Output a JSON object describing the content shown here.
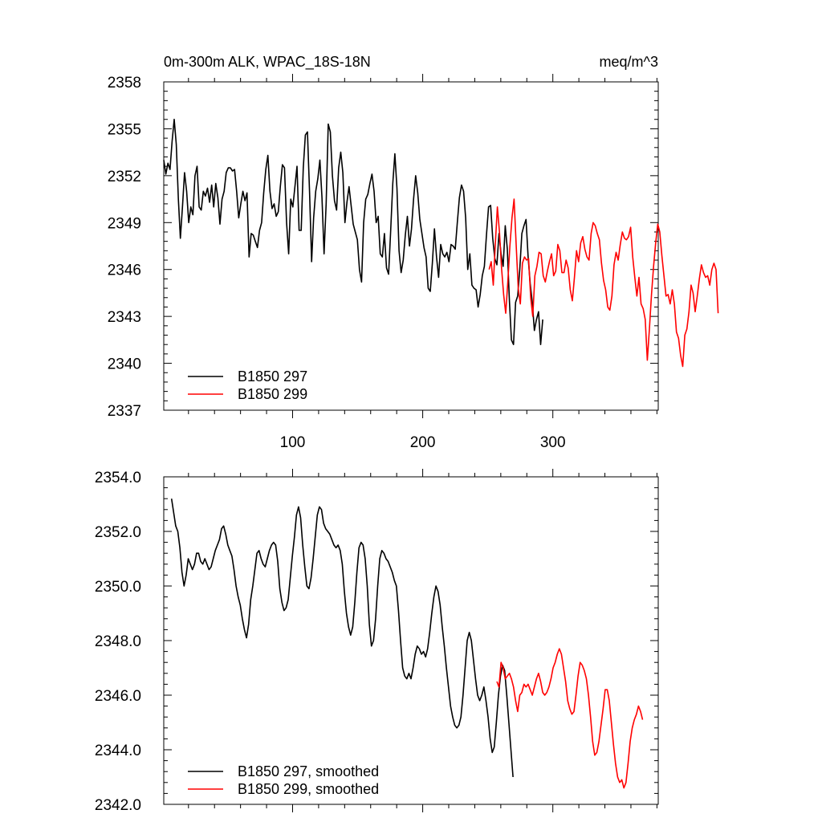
{
  "chart_data": [
    {
      "type": "line",
      "title_left": "0m-300m ALK, WPAC_18S-18N",
      "title_right": "meq/m^3",
      "xlabel": "",
      "ylabel": "",
      "xlim": [
        1,
        381
      ],
      "ylim": [
        2337,
        2358
      ],
      "x_ticks": [
        100,
        200,
        300
      ],
      "y_ticks": [
        2337,
        2340,
        2343,
        2346,
        2349,
        2352,
        2355,
        2358
      ],
      "y_tick_labels": [
        "2337",
        "2340",
        "2343",
        "2346",
        "2349",
        "2352",
        "2355",
        "2358"
      ],
      "legend_position": "bottom-left",
      "series": [
        {
          "name": "B1850 297",
          "color": "#000000",
          "x_start": 1,
          "values": [
            2353.0,
            2352.1,
            2352.8,
            2352.4,
            2354.2,
            2355.6,
            2354.0,
            2350.5,
            2348.0,
            2350.0,
            2352.2,
            2351.0,
            2349.0,
            2350.0,
            2349.5,
            2352.0,
            2352.6,
            2350.0,
            2349.8,
            2351.0,
            2350.7,
            2351.2,
            2350.3,
            2351.4,
            2350.0,
            2351.5,
            2350.6,
            2348.9,
            2350.5,
            2351.0,
            2352.2,
            2352.5,
            2352.5,
            2352.3,
            2352.4,
            2351.0,
            2349.3,
            2350.2,
            2351.0,
            2350.4,
            2350.9,
            2346.8,
            2348.3,
            2348.2,
            2347.8,
            2347.4,
            2348.5,
            2349.0,
            2350.9,
            2352.4,
            2353.3,
            2351.0,
            2349.9,
            2350.2,
            2349.4,
            2349.7,
            2351.3,
            2352.7,
            2352.5,
            2349.0,
            2347.0,
            2350.5,
            2350.0,
            2351.3,
            2352.6,
            2348.5,
            2348.5,
            2352.5,
            2354.6,
            2354.8,
            2351.0,
            2346.5,
            2349.3,
            2351.0,
            2351.8,
            2353.0,
            2350.6,
            2347.0,
            2350.2,
            2355.3,
            2354.8,
            2352.0,
            2350.4,
            2349.8,
            2352.5,
            2353.5,
            2352.2,
            2349.0,
            2350.3,
            2351.3,
            2350.1,
            2348.9,
            2348.4,
            2347.9,
            2346.0,
            2345.2,
            2349.0,
            2350.5,
            2350.8,
            2351.5,
            2352.1,
            2351.0,
            2349.0,
            2349.4,
            2347.0,
            2346.8,
            2348.3,
            2346.1,
            2345.7,
            2348.5,
            2351.5,
            2353.4,
            2351.2,
            2347.2,
            2345.8,
            2346.6,
            2348.2,
            2349.4,
            2347.5,
            2348.6,
            2350.5,
            2352.0,
            2350.9,
            2349.2,
            2348.3,
            2347.4,
            2346.8,
            2344.8,
            2344.6,
            2346.4,
            2348.6,
            2346.8,
            2345.5,
            2347.6,
            2347.0,
            2346.8,
            2347.1,
            2346.5,
            2347.6,
            2347.5,
            2347.3,
            2349.0,
            2350.6,
            2351.4,
            2351.0,
            2349.3,
            2346.0,
            2347.0,
            2345.0,
            2344.8,
            2344.7,
            2343.6,
            2344.4,
            2345.6,
            2346.2,
            2348.2,
            2350.0,
            2350.1,
            2348.0,
            2346.7,
            2346.3,
            2348.3,
            2347.0,
            2346.2,
            2348.8,
            2347.3,
            2344.0,
            2341.5,
            2341.2,
            2343.9,
            2344.3,
            2346.0,
            2348.3,
            2348.8,
            2349.2,
            2346.8,
            2345.1,
            2343.9,
            2342.1,
            2342.8,
            2343.3,
            2341.2,
            2342.8
          ]
        },
        {
          "name": "B1850 299",
          "color": "#ff0000",
          "x_start": 251,
          "values": [
            2346.0,
            2346.5,
            2345.0,
            2347.6,
            2350.0,
            2348.4,
            2346.1,
            2344.4,
            2343.2,
            2345.2,
            2347.5,
            2349.3,
            2350.5,
            2347.6,
            2344.8,
            2343.8,
            2346.4,
            2346.8,
            2346.6,
            2346.7,
            2344.2,
            2343.0,
            2345.6,
            2346.2,
            2347.1,
            2347.0,
            2345.6,
            2345.2,
            2345.9,
            2346.5,
            2347.0,
            2345.6,
            2345.9,
            2347.6,
            2347.2,
            2345.8,
            2345.8,
            2346.6,
            2346.1,
            2344.7,
            2344.0,
            2345.5,
            2347.2,
            2346.5,
            2347.7,
            2348.1,
            2347.3,
            2346.8,
            2346.6,
            2348.3,
            2349.0,
            2348.8,
            2348.3,
            2347.9,
            2346.4,
            2345.3,
            2344.7,
            2343.6,
            2343.4,
            2344.3,
            2346.3,
            2347.1,
            2346.6,
            2347.6,
            2348.4,
            2348.0,
            2347.9,
            2348.1,
            2348.7,
            2346.8,
            2345.5,
            2344.3,
            2345.5,
            2343.8,
            2343.5,
            2342.8,
            2340.2,
            2342.2,
            2344.4,
            2346.2,
            2347.7,
            2348.9,
            2348.4,
            2346.9,
            2345.6,
            2344.3,
            2344.4,
            2343.8,
            2344.7,
            2343.8,
            2342.0,
            2341.6,
            2340.5,
            2339.8,
            2341.8,
            2342.2,
            2343.3,
            2345.0,
            2344.5,
            2343.3,
            2344.3,
            2345.4,
            2346.3,
            2345.8,
            2345.5,
            2345.6,
            2345.0,
            2346.0,
            2346.4,
            2346.0,
            2343.2
          ]
        }
      ]
    },
    {
      "type": "line",
      "xlabel": "",
      "ylabel": "",
      "xlim": [
        1,
        381
      ],
      "ylim": [
        2342.0,
        2354.0
      ],
      "x_ticks": [
        100,
        200,
        300
      ],
      "y_ticks": [
        2342.0,
        2344.0,
        2346.0,
        2348.0,
        2350.0,
        2352.0,
        2354.0
      ],
      "y_tick_labels": [
        "2342.0",
        "2344.0",
        "2346.0",
        "2348.0",
        "2350.0",
        "2352.0",
        "2354.0"
      ],
      "legend_position": "bottom-left",
      "series": [
        {
          "name": "B1850 297, smoothed",
          "color": "#000000",
          "x_start": 7,
          "values": [
            2353.2,
            2352.7,
            2352.2,
            2352.0,
            2351.4,
            2350.5,
            2350.0,
            2350.4,
            2351.0,
            2350.8,
            2350.6,
            2350.8,
            2351.2,
            2351.2,
            2350.9,
            2350.8,
            2351.0,
            2350.8,
            2350.6,
            2350.7,
            2351.0,
            2351.3,
            2351.5,
            2351.7,
            2352.1,
            2352.2,
            2351.9,
            2351.5,
            2351.3,
            2351.1,
            2350.6,
            2350.0,
            2349.6,
            2349.3,
            2348.8,
            2348.4,
            2348.1,
            2348.6,
            2349.5,
            2350.0,
            2350.6,
            2351.2,
            2351.3,
            2351.0,
            2350.8,
            2350.7,
            2351.0,
            2351.3,
            2351.5,
            2351.6,
            2351.5,
            2350.9,
            2349.9,
            2349.4,
            2349.1,
            2349.2,
            2349.5,
            2350.3,
            2351.1,
            2351.8,
            2352.6,
            2352.9,
            2352.5,
            2351.5,
            2350.7,
            2350.0,
            2349.9,
            2350.3,
            2351.0,
            2351.8,
            2352.6,
            2352.9,
            2352.8,
            2352.3,
            2352.1,
            2352.0,
            2351.9,
            2351.7,
            2351.5,
            2351.4,
            2351.5,
            2351.3,
            2350.8,
            2349.8,
            2349.0,
            2348.5,
            2348.2,
            2348.5,
            2349.4,
            2350.5,
            2351.4,
            2351.6,
            2351.5,
            2351.0,
            2350.0,
            2348.6,
            2347.8,
            2348.0,
            2348.8,
            2350.0,
            2351.0,
            2351.3,
            2351.2,
            2351.0,
            2350.9,
            2350.7,
            2350.5,
            2350.2,
            2350.0,
            2349.1,
            2348.0,
            2347.0,
            2346.7,
            2346.6,
            2346.8,
            2346.6,
            2347.0,
            2347.5,
            2347.8,
            2347.7,
            2347.5,
            2347.6,
            2347.4,
            2347.7,
            2348.3,
            2349.0,
            2349.6,
            2350.0,
            2349.8,
            2349.3,
            2348.5,
            2347.8,
            2347.0,
            2346.3,
            2345.6,
            2345.2,
            2344.9,
            2344.8,
            2344.9,
            2345.2,
            2346.0,
            2347.0,
            2348.0,
            2348.3,
            2348.0,
            2347.3,
            2346.6,
            2346.0,
            2345.8,
            2346.0,
            2346.3,
            2345.8,
            2345.2,
            2344.4,
            2343.9,
            2344.1,
            2345.0,
            2346.0,
            2346.7,
            2347.1,
            2346.9,
            2346.0,
            2345.0,
            2344.0,
            2343.0
          ]
        },
        {
          "name": "B1850 299, smoothed",
          "color": "#ff0000",
          "x_start": 257,
          "values": [
            2346.5,
            2346.3,
            2347.2,
            2347.0,
            2346.6,
            2346.7,
            2346.8,
            2346.6,
            2346.3,
            2345.8,
            2345.4,
            2346.0,
            2346.1,
            2346.4,
            2346.3,
            2346.4,
            2346.2,
            2346.0,
            2346.3,
            2346.6,
            2346.8,
            2346.5,
            2346.1,
            2346.0,
            2346.1,
            2346.3,
            2346.6,
            2347.0,
            2347.2,
            2347.5,
            2347.7,
            2347.5,
            2347.0,
            2346.5,
            2345.8,
            2345.5,
            2345.3,
            2345.4,
            2346.0,
            2346.7,
            2347.2,
            2347.1,
            2346.9,
            2346.6,
            2346.0,
            2345.2,
            2344.3,
            2343.8,
            2343.9,
            2344.3,
            2344.9,
            2345.5,
            2346.2,
            2346.2,
            2345.8,
            2345.0,
            2344.2,
            2343.5,
            2343.0,
            2342.8,
            2342.9,
            2342.6,
            2342.8,
            2343.5,
            2344.3,
            2344.8,
            2345.1,
            2345.3,
            2345.6,
            2345.4,
            2345.1
          ]
        }
      ]
    }
  ]
}
